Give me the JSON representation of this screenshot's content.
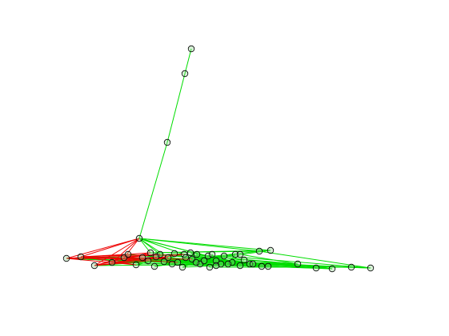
{
  "graph": {
    "type": "network",
    "edge_colors": {
      "primary": "#00dd00",
      "secondary": "#ee0000"
    },
    "node_style": {
      "fill": "#90d090",
      "stroke": "#000000"
    },
    "labels_shown": false
  }
}
